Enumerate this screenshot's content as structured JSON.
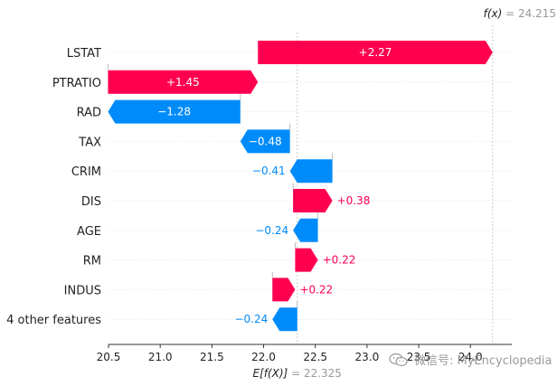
{
  "chart_data": {
    "type": "waterfall",
    "base_value": 22.325,
    "output_value": 24.215,
    "xlim": [
      20.5,
      24.4
    ],
    "xticks": [
      "20.5",
      "21.0",
      "21.5",
      "22.0",
      "22.5",
      "23.0",
      "23.5",
      "24.0"
    ],
    "xtick_values": [
      20.5,
      21.0,
      21.5,
      22.0,
      22.5,
      23.0,
      23.5,
      24.0
    ],
    "base_label": "E[f(X)]",
    "base_value_label": "= 22.325",
    "output_label": "f(x)",
    "output_value_label": "= 24.215",
    "positive_color": "#ff0051",
    "negative_color": "#008bfb",
    "features": [
      {
        "name": "LSTAT",
        "value": 2.27,
        "label": "+2.27"
      },
      {
        "name": "PTRATIO",
        "value": 1.45,
        "label": "+1.45"
      },
      {
        "name": "RAD",
        "value": -1.28,
        "label": "−1.28"
      },
      {
        "name": "TAX",
        "value": -0.48,
        "label": "−0.48"
      },
      {
        "name": "CRIM",
        "value": -0.41,
        "label": "−0.41"
      },
      {
        "name": "DIS",
        "value": 0.38,
        "label": "+0.38"
      },
      {
        "name": "AGE",
        "value": -0.24,
        "label": "−0.24"
      },
      {
        "name": "RM",
        "value": 0.22,
        "label": "+0.22"
      },
      {
        "name": "INDUS",
        "value": 0.22,
        "label": "+0.22"
      },
      {
        "name": "4 other features",
        "value": -0.24,
        "label": "−0.24"
      }
    ]
  },
  "watermark": {
    "text": "微信号: MyEncyclopedia",
    "icon": "wechat-icon"
  }
}
